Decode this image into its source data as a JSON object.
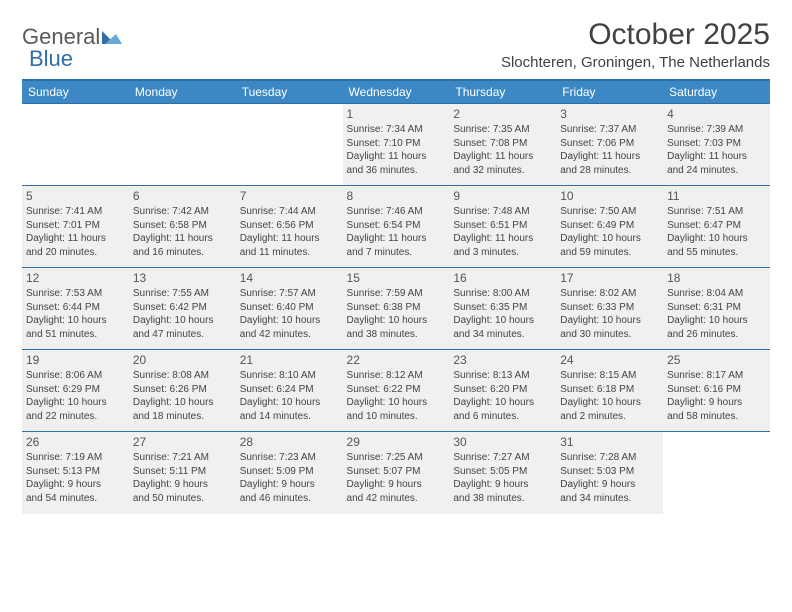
{
  "logo": {
    "word1": "General",
    "word2": "Blue"
  },
  "title": "October 2025",
  "location": "Slochteren, Groningen, The Netherlands",
  "colors": {
    "header_bg": "#3b88c4",
    "header_border": "#2f6fa7",
    "row_alt_bg": "#f0f0f0",
    "text": "#414141"
  },
  "day_headers": [
    "Sunday",
    "Monday",
    "Tuesday",
    "Wednesday",
    "Thursday",
    "Friday",
    "Saturday"
  ],
  "weeks": [
    [
      null,
      null,
      null,
      {
        "n": "1",
        "sr": "Sunrise: 7:34 AM",
        "ss": "Sunset: 7:10 PM",
        "d1": "Daylight: 11 hours",
        "d2": "and 36 minutes."
      },
      {
        "n": "2",
        "sr": "Sunrise: 7:35 AM",
        "ss": "Sunset: 7:08 PM",
        "d1": "Daylight: 11 hours",
        "d2": "and 32 minutes."
      },
      {
        "n": "3",
        "sr": "Sunrise: 7:37 AM",
        "ss": "Sunset: 7:06 PM",
        "d1": "Daylight: 11 hours",
        "d2": "and 28 minutes."
      },
      {
        "n": "4",
        "sr": "Sunrise: 7:39 AM",
        "ss": "Sunset: 7:03 PM",
        "d1": "Daylight: 11 hours",
        "d2": "and 24 minutes."
      }
    ],
    [
      {
        "n": "5",
        "sr": "Sunrise: 7:41 AM",
        "ss": "Sunset: 7:01 PM",
        "d1": "Daylight: 11 hours",
        "d2": "and 20 minutes."
      },
      {
        "n": "6",
        "sr": "Sunrise: 7:42 AM",
        "ss": "Sunset: 6:58 PM",
        "d1": "Daylight: 11 hours",
        "d2": "and 16 minutes."
      },
      {
        "n": "7",
        "sr": "Sunrise: 7:44 AM",
        "ss": "Sunset: 6:56 PM",
        "d1": "Daylight: 11 hours",
        "d2": "and 11 minutes."
      },
      {
        "n": "8",
        "sr": "Sunrise: 7:46 AM",
        "ss": "Sunset: 6:54 PM",
        "d1": "Daylight: 11 hours",
        "d2": "and 7 minutes."
      },
      {
        "n": "9",
        "sr": "Sunrise: 7:48 AM",
        "ss": "Sunset: 6:51 PM",
        "d1": "Daylight: 11 hours",
        "d2": "and 3 minutes."
      },
      {
        "n": "10",
        "sr": "Sunrise: 7:50 AM",
        "ss": "Sunset: 6:49 PM",
        "d1": "Daylight: 10 hours",
        "d2": "and 59 minutes."
      },
      {
        "n": "11",
        "sr": "Sunrise: 7:51 AM",
        "ss": "Sunset: 6:47 PM",
        "d1": "Daylight: 10 hours",
        "d2": "and 55 minutes."
      }
    ],
    [
      {
        "n": "12",
        "sr": "Sunrise: 7:53 AM",
        "ss": "Sunset: 6:44 PM",
        "d1": "Daylight: 10 hours",
        "d2": "and 51 minutes."
      },
      {
        "n": "13",
        "sr": "Sunrise: 7:55 AM",
        "ss": "Sunset: 6:42 PM",
        "d1": "Daylight: 10 hours",
        "d2": "and 47 minutes."
      },
      {
        "n": "14",
        "sr": "Sunrise: 7:57 AM",
        "ss": "Sunset: 6:40 PM",
        "d1": "Daylight: 10 hours",
        "d2": "and 42 minutes."
      },
      {
        "n": "15",
        "sr": "Sunrise: 7:59 AM",
        "ss": "Sunset: 6:38 PM",
        "d1": "Daylight: 10 hours",
        "d2": "and 38 minutes."
      },
      {
        "n": "16",
        "sr": "Sunrise: 8:00 AM",
        "ss": "Sunset: 6:35 PM",
        "d1": "Daylight: 10 hours",
        "d2": "and 34 minutes."
      },
      {
        "n": "17",
        "sr": "Sunrise: 8:02 AM",
        "ss": "Sunset: 6:33 PM",
        "d1": "Daylight: 10 hours",
        "d2": "and 30 minutes."
      },
      {
        "n": "18",
        "sr": "Sunrise: 8:04 AM",
        "ss": "Sunset: 6:31 PM",
        "d1": "Daylight: 10 hours",
        "d2": "and 26 minutes."
      }
    ],
    [
      {
        "n": "19",
        "sr": "Sunrise: 8:06 AM",
        "ss": "Sunset: 6:29 PM",
        "d1": "Daylight: 10 hours",
        "d2": "and 22 minutes."
      },
      {
        "n": "20",
        "sr": "Sunrise: 8:08 AM",
        "ss": "Sunset: 6:26 PM",
        "d1": "Daylight: 10 hours",
        "d2": "and 18 minutes."
      },
      {
        "n": "21",
        "sr": "Sunrise: 8:10 AM",
        "ss": "Sunset: 6:24 PM",
        "d1": "Daylight: 10 hours",
        "d2": "and 14 minutes."
      },
      {
        "n": "22",
        "sr": "Sunrise: 8:12 AM",
        "ss": "Sunset: 6:22 PM",
        "d1": "Daylight: 10 hours",
        "d2": "and 10 minutes."
      },
      {
        "n": "23",
        "sr": "Sunrise: 8:13 AM",
        "ss": "Sunset: 6:20 PM",
        "d1": "Daylight: 10 hours",
        "d2": "and 6 minutes."
      },
      {
        "n": "24",
        "sr": "Sunrise: 8:15 AM",
        "ss": "Sunset: 6:18 PM",
        "d1": "Daylight: 10 hours",
        "d2": "and 2 minutes."
      },
      {
        "n": "25",
        "sr": "Sunrise: 8:17 AM",
        "ss": "Sunset: 6:16 PM",
        "d1": "Daylight: 9 hours",
        "d2": "and 58 minutes."
      }
    ],
    [
      {
        "n": "26",
        "sr": "Sunrise: 7:19 AM",
        "ss": "Sunset: 5:13 PM",
        "d1": "Daylight: 9 hours",
        "d2": "and 54 minutes."
      },
      {
        "n": "27",
        "sr": "Sunrise: 7:21 AM",
        "ss": "Sunset: 5:11 PM",
        "d1": "Daylight: 9 hours",
        "d2": "and 50 minutes."
      },
      {
        "n": "28",
        "sr": "Sunrise: 7:23 AM",
        "ss": "Sunset: 5:09 PM",
        "d1": "Daylight: 9 hours",
        "d2": "and 46 minutes."
      },
      {
        "n": "29",
        "sr": "Sunrise: 7:25 AM",
        "ss": "Sunset: 5:07 PM",
        "d1": "Daylight: 9 hours",
        "d2": "and 42 minutes."
      },
      {
        "n": "30",
        "sr": "Sunrise: 7:27 AM",
        "ss": "Sunset: 5:05 PM",
        "d1": "Daylight: 9 hours",
        "d2": "and 38 minutes."
      },
      {
        "n": "31",
        "sr": "Sunrise: 7:28 AM",
        "ss": "Sunset: 5:03 PM",
        "d1": "Daylight: 9 hours",
        "d2": "and 34 minutes."
      },
      null
    ]
  ]
}
